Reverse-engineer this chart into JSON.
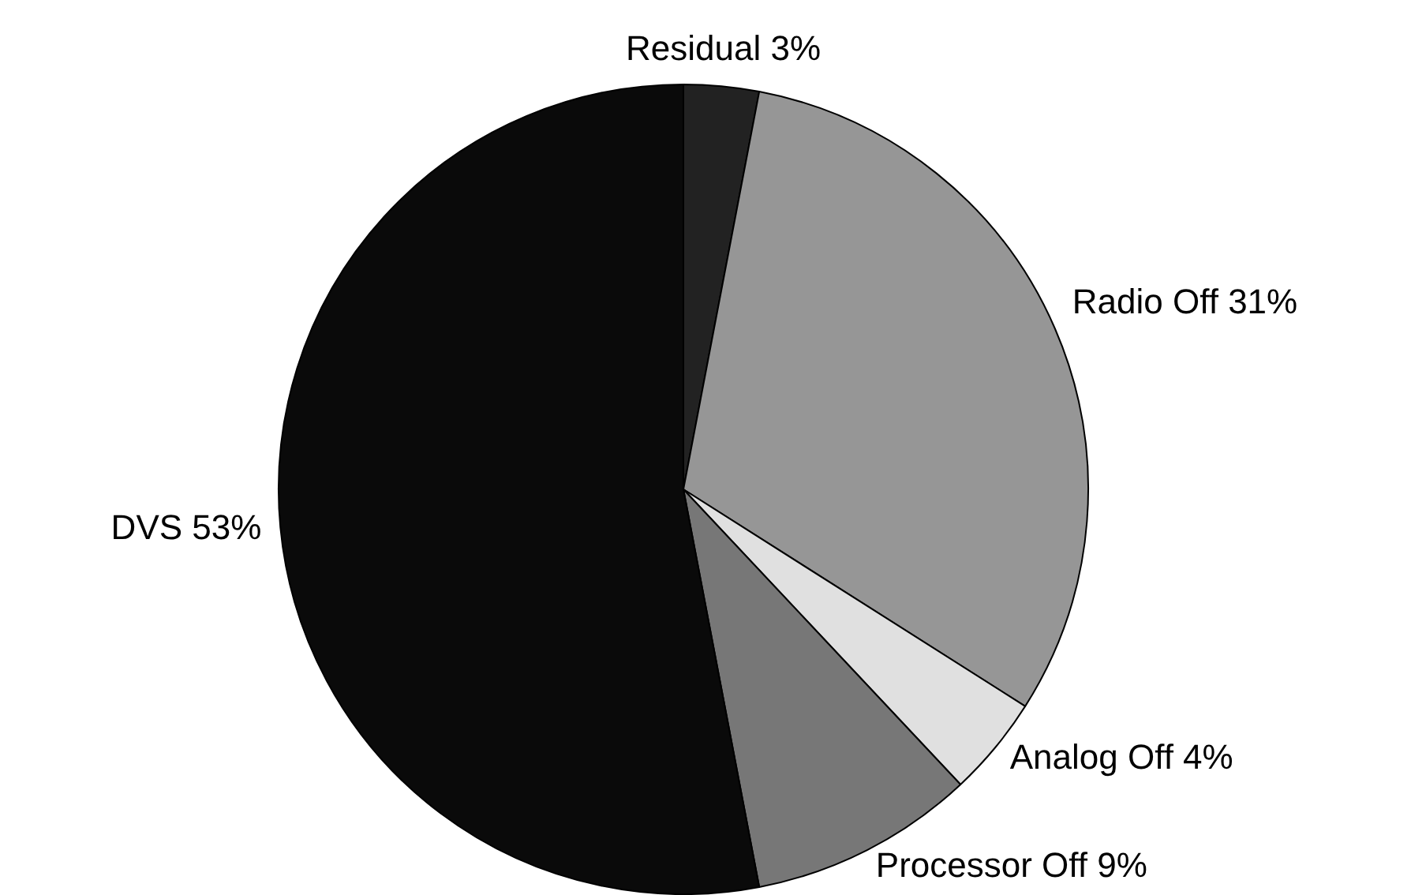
{
  "chart_data": {
    "type": "pie",
    "categories": [
      "Residual",
      "Radio Off",
      "Analog Off",
      "Processor Off",
      "DVS"
    ],
    "values": [
      3,
      31,
      4,
      9,
      53
    ],
    "colors": [
      "#222222",
      "#969696",
      "#e0e0e0",
      "#777777",
      "#0a0a0a"
    ],
    "value_labels": [
      "3%",
      "31%",
      "4%",
      "9%",
      "53%"
    ],
    "legend": false
  }
}
